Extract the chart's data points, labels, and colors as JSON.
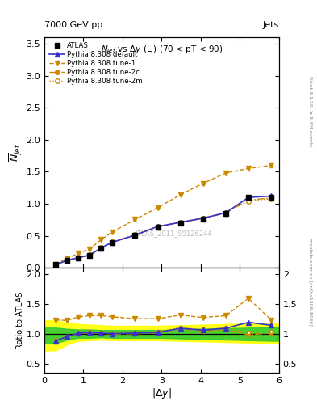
{
  "title_top": "7000 GeV pp",
  "title_top_right": "Jets",
  "title_main": "$N_{jet}$ vs $\\Delta y$ (LJ) (70 < pT < 90)",
  "watermark": "ATLAS_2011_S9126244",
  "right_label_top": "Rivet 3.1.10, ≥ 3.4M events",
  "right_label_bot": "mcplots.cern.ch [arXiv:1306.3436]",
  "atlas_x": [
    0.29,
    0.58,
    0.87,
    1.16,
    1.45,
    1.74,
    2.32,
    2.9,
    3.48,
    4.06,
    4.64,
    5.22,
    5.8
  ],
  "atlas_y": [
    0.048,
    0.115,
    0.155,
    0.195,
    0.305,
    0.395,
    0.505,
    0.635,
    0.695,
    0.76,
    0.845,
    1.095,
    1.095
  ],
  "atlas_yerr": [
    0.005,
    0.008,
    0.008,
    0.01,
    0.012,
    0.015,
    0.018,
    0.02,
    0.022,
    0.025,
    0.03,
    0.035,
    0.035
  ],
  "default_x": [
    0.29,
    0.58,
    0.87,
    1.16,
    1.45,
    1.74,
    2.32,
    2.9,
    3.48,
    4.06,
    4.64,
    5.22,
    5.8
  ],
  "default_y": [
    0.048,
    0.117,
    0.158,
    0.2,
    0.31,
    0.4,
    0.51,
    0.645,
    0.71,
    0.775,
    0.86,
    1.1,
    1.12
  ],
  "tune1_x": [
    0.29,
    0.58,
    0.87,
    1.16,
    1.45,
    1.74,
    2.32,
    2.9,
    3.48,
    4.06,
    4.64,
    5.22,
    5.8
  ],
  "tune1_y": [
    0.058,
    0.145,
    0.225,
    0.295,
    0.44,
    0.56,
    0.755,
    0.94,
    1.14,
    1.32,
    1.48,
    1.55,
    1.6
  ],
  "tune1_yerr": [
    0.004,
    0.006,
    0.008,
    0.01,
    0.012,
    0.014,
    0.016,
    0.018,
    0.02,
    0.022,
    0.025,
    0.027,
    0.028
  ],
  "tune2c_x": [
    0.29,
    0.58,
    0.87,
    1.16,
    1.45,
    1.74,
    2.32,
    2.9,
    3.48,
    4.06,
    4.64,
    5.22,
    5.8
  ],
  "tune2c_y": [
    0.048,
    0.116,
    0.156,
    0.198,
    0.305,
    0.397,
    0.508,
    0.64,
    0.71,
    0.77,
    0.855,
    1.06,
    1.09
  ],
  "tune2m_x": [
    0.29,
    0.58,
    0.87,
    1.16,
    1.45,
    1.74,
    2.32,
    2.9,
    3.48,
    4.06,
    4.64,
    5.22,
    5.8
  ],
  "tune2m_y": [
    0.049,
    0.118,
    0.16,
    0.202,
    0.312,
    0.405,
    0.515,
    0.648,
    0.715,
    0.778,
    0.865,
    1.04,
    1.08
  ],
  "ratio_default_y": [
    0.88,
    0.95,
    1.01,
    1.02,
    1.01,
    1.0,
    1.01,
    1.02,
    1.09,
    1.06,
    1.09,
    1.19,
    1.14
  ],
  "ratio_tune1_y": [
    1.23,
    1.22,
    1.28,
    1.3,
    1.3,
    1.28,
    1.25,
    1.25,
    1.31,
    1.27,
    1.3,
    1.59,
    1.23
  ],
  "ratio_tune2c_y": [
    0.88,
    0.95,
    1.0,
    1.01,
    1.01,
    0.99,
    1.0,
    1.01,
    1.08,
    1.04,
    1.07,
    0.98,
    1.01
  ],
  "ratio_tune2m_y": [
    0.89,
    0.96,
    1.02,
    1.03,
    1.02,
    1.01,
    1.02,
    1.03,
    1.1,
    1.07,
    1.1,
    1.02,
    1.03
  ],
  "yellow_band_x": [
    0.0,
    0.29,
    0.58,
    0.87,
    1.16,
    1.45,
    1.74,
    2.32,
    2.9,
    3.48,
    4.06,
    4.64,
    5.22,
    5.8,
    6.0
  ],
  "yellow_band_lo": [
    0.72,
    0.72,
    0.82,
    0.88,
    0.89,
    0.9,
    0.89,
    0.89,
    0.89,
    0.88,
    0.87,
    0.86,
    0.85,
    0.84,
    0.84
  ],
  "yellow_band_hi": [
    1.22,
    1.22,
    1.18,
    1.16,
    1.15,
    1.14,
    1.13,
    1.13,
    1.13,
    1.14,
    1.15,
    1.16,
    1.17,
    1.18,
    1.18
  ],
  "green_band_x": [
    0.0,
    0.29,
    0.58,
    0.87,
    1.16,
    1.45,
    1.74,
    2.32,
    2.9,
    3.48,
    4.06,
    4.64,
    5.22,
    5.8,
    6.0
  ],
  "green_band_lo": [
    0.84,
    0.84,
    0.9,
    0.93,
    0.93,
    0.94,
    0.93,
    0.93,
    0.93,
    0.92,
    0.91,
    0.9,
    0.89,
    0.88,
    0.88
  ],
  "green_band_hi": [
    1.1,
    1.1,
    1.08,
    1.07,
    1.07,
    1.06,
    1.06,
    1.06,
    1.06,
    1.07,
    1.08,
    1.09,
    1.1,
    1.11,
    1.11
  ],
  "ylim_main": [
    0.0,
    3.6
  ],
  "ylim_ratio": [
    0.35,
    2.1
  ],
  "yticks_main": [
    0.0,
    0.5,
    1.0,
    1.5,
    2.0,
    2.5,
    3.0,
    3.5
  ],
  "yticks_ratio": [
    0.5,
    1.0,
    1.5,
    2.0
  ],
  "color_atlas": "#000000",
  "color_default": "#3333cc",
  "color_tune": "#cc8800",
  "color_yellow": "#ffff00",
  "color_green": "#33cc33",
  "color_watermark": "#bbbbbb"
}
